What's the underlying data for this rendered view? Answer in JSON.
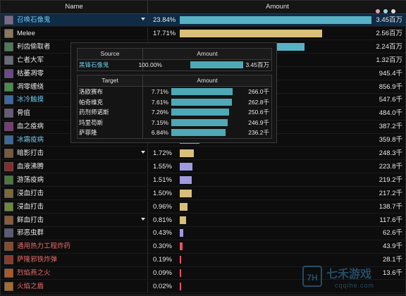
{
  "header": {
    "name_label": "Name",
    "amount_label": "Amount"
  },
  "window_dots": [
    "#e8a0b0",
    "#a0d8e8",
    "#e0e0e0"
  ],
  "rows": [
    {
      "name": "召唤石像鬼",
      "color": "#6ec6e8",
      "pct": "23.84%",
      "fill": 1.0,
      "bar_color": "#56b2c4",
      "amount": "3.45百万",
      "dropdown": true,
      "selected": true,
      "icon": "gargoyle-icon",
      "icon_color": "#7a6a8a"
    },
    {
      "name": "Melee",
      "color": "#e8e8e8",
      "pct": "17.71%",
      "fill": 0.743,
      "bar_color": "#d8c07a",
      "amount": "2.56百万",
      "dropdown": false,
      "selected": false,
      "icon": "sword-icon",
      "icon_color": "#8a7a5a"
    },
    {
      "name": "利齿偷取者",
      "color": "#e8e8e8",
      "pct": "",
      "fill": 0.65,
      "bar_color": "#56b2c4",
      "amount": "2.24百万",
      "dropdown": false,
      "selected": false,
      "icon": "ghoul-icon",
      "icon_color": "#4a7a5a"
    },
    {
      "name": "亡者大军",
      "color": "#e8e8e8",
      "pct": "",
      "fill": 0.383,
      "bar_color": "#56b2c4",
      "amount": "1.32百万",
      "dropdown": false,
      "selected": false,
      "icon": "army-icon",
      "icon_color": "#6a6a7a"
    },
    {
      "name": "枯萎凋零",
      "color": "#e8e8e8",
      "pct": "",
      "fill": 0.274,
      "bar_color": "#a09ae0",
      "amount": "945.4千",
      "dropdown": false,
      "selected": false,
      "icon": "blight-icon",
      "icon_color": "#6a4a8a"
    },
    {
      "name": "凋零缠绕",
      "color": "#e8e8e8",
      "pct": "",
      "fill": 0.248,
      "bar_color": "#a09ae0",
      "amount": "856.9千",
      "dropdown": false,
      "selected": false,
      "icon": "coil-icon",
      "icon_color": "#4a8a4a"
    },
    {
      "name": "冰冷触摸",
      "color": "#6ec6e8",
      "pct": "",
      "fill": 0.159,
      "bar_color": "#56b2c4",
      "amount": "547.6千",
      "dropdown": false,
      "selected": false,
      "icon": "frost-icon",
      "icon_color": "#3a6aa0"
    },
    {
      "name": "骨疽",
      "color": "#e8e8e8",
      "pct": "",
      "fill": 0.14,
      "bar_color": "#a09ae0",
      "amount": "484.0千",
      "dropdown": false,
      "selected": false,
      "icon": "bone-icon",
      "icon_color": "#6a5a7a"
    },
    {
      "name": "血之疫病",
      "color": "#e8e8e8",
      "pct": "",
      "fill": 0.112,
      "bar_color": "#a09ae0",
      "amount": "387.2千",
      "dropdown": false,
      "selected": false,
      "icon": "plague-icon",
      "icon_color": "#7a3a7a"
    },
    {
      "name": "冰霜疫病",
      "color": "#6ec6e8",
      "pct": "",
      "fill": 0.104,
      "bar_color": "#56b2c4",
      "amount": "359.8千",
      "dropdown": false,
      "selected": false,
      "icon": "frost-plague-icon",
      "icon_color": "#3a6a9a"
    },
    {
      "name": "暗影打击",
      "color": "#e8e8e8",
      "pct": "1.72%",
      "fill": 0.072,
      "bar_color": "#d8c07a",
      "amount": "248.3千",
      "dropdown": true,
      "selected": false,
      "icon": "shadow-strike-icon",
      "icon_color": "#7a5a3a"
    },
    {
      "name": "血液沸腾",
      "color": "#e8e8e8",
      "pct": "1.55%",
      "fill": 0.065,
      "bar_color": "#a09ae0",
      "amount": "223.8千",
      "dropdown": false,
      "selected": false,
      "icon": "blood-boil-icon",
      "icon_color": "#8a2a2a"
    },
    {
      "name": "游荡疫病",
      "color": "#e8e8e8",
      "pct": "1.51%",
      "fill": 0.063,
      "bar_color": "#a09ae0",
      "amount": "219.2千",
      "dropdown": false,
      "selected": false,
      "icon": "wandering-plague-icon",
      "icon_color": "#4a7a3a"
    },
    {
      "name": "浸血打击",
      "color": "#e8e8e8",
      "pct": "1.50%",
      "fill": 0.063,
      "bar_color": "#d8c07a",
      "amount": "217.2千",
      "dropdown": false,
      "selected": false,
      "icon": "blood-strike-icon",
      "icon_color": "#7a6a3a"
    },
    {
      "name": "浸血打击",
      "color": "#e8e8e8",
      "pct": "0.96%",
      "fill": 0.04,
      "bar_color": "#d8c07a",
      "amount": "138.7千",
      "dropdown": false,
      "selected": false,
      "icon": "blood-strike-icon",
      "icon_color": "#6a8a3a"
    },
    {
      "name": "鲜血打击",
      "color": "#e8e8e8",
      "pct": "0.81%",
      "fill": 0.034,
      "bar_color": "#d8c07a",
      "amount": "117.6千",
      "dropdown": true,
      "selected": false,
      "icon": "heart-strike-icon",
      "icon_color": "#8a5a3a"
    },
    {
      "name": "邪恶虫群",
      "color": "#e8e8e8",
      "pct": "0.43%",
      "fill": 0.018,
      "bar_color": "#a09ae0",
      "amount": "62.6千",
      "dropdown": false,
      "selected": false,
      "icon": "swarm-icon",
      "icon_color": "#5a5a7a"
    },
    {
      "name": "通用热力工程炸药",
      "color": "#e86a6a",
      "pct": "0.30%",
      "fill": 0.013,
      "bar_color": "#e8506a",
      "amount": "43.9千",
      "dropdown": false,
      "selected": false,
      "icon": "explosive-icon",
      "icon_color": "#8a4a2a"
    },
    {
      "name": "萨隆邪铁炸弹",
      "color": "#e86a6a",
      "pct": "0.19%",
      "fill": 0.008,
      "bar_color": "#e8506a",
      "amount": "28.1千",
      "dropdown": false,
      "selected": false,
      "icon": "bomb-icon",
      "icon_color": "#8a3a2a"
    },
    {
      "name": "烈焰燕之火",
      "color": "#e86a6a",
      "pct": "0.09%",
      "fill": 0.004,
      "bar_color": "#e8506a",
      "amount": "13.6千",
      "dropdown": false,
      "selected": false,
      "icon": "fire-icon",
      "icon_color": "#aa5a2a"
    },
    {
      "name": "火焰之盾",
      "color": "#e86a6a",
      "pct": "0.02%",
      "fill": 0.001,
      "bar_color": "#e8506a",
      "amount": "",
      "dropdown": false,
      "selected": false,
      "icon": "fire-shield-icon",
      "icon_color": "#aa6a2a"
    }
  ],
  "tooltip": {
    "source_header": "Source",
    "source_amount_header": "Amount",
    "source": {
      "name": "黑锋石像鬼",
      "pct": "100.00%",
      "fill": 1.0,
      "amount": "3.45百万"
    },
    "target_header": "Target",
    "target_amount_header": "Amount",
    "targets": [
      {
        "name": "洛欧赛布",
        "pct": "7.71%",
        "fill": 0.826,
        "amount": "266.0千"
      },
      {
        "name": "帕奇维克",
        "pct": "7.61%",
        "fill": 0.815,
        "amount": "262.8千"
      },
      {
        "name": "药剂师诺斯",
        "pct": "7.26%",
        "fill": 0.778,
        "amount": "250.6千"
      },
      {
        "name": "玛里苟斯",
        "pct": "7.15%",
        "fill": 0.766,
        "amount": "246.9千"
      },
      {
        "name": "萨菲隆",
        "pct": "6.84%",
        "fill": 0.733,
        "amount": "236.2千"
      }
    ],
    "bar_color": "#4fa8b6",
    "source_name_color": "#6ec6e8"
  },
  "watermark": {
    "title": "七禾游戏",
    "url": "cqqihe.com",
    "logo": "7H"
  }
}
